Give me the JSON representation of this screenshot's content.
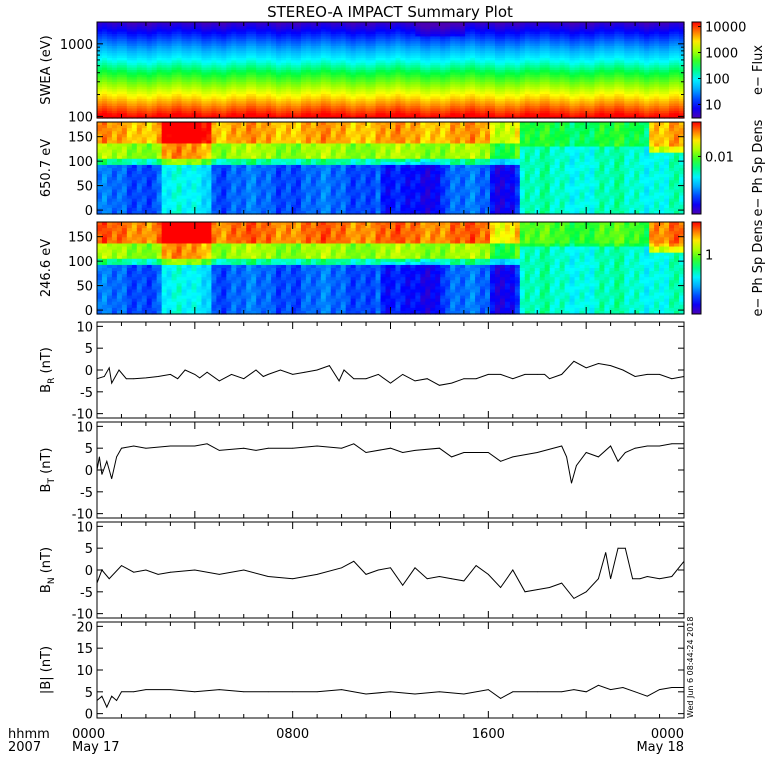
{
  "title": "STEREO-A IMPACT Summary Plot",
  "footer": {
    "hhmm": "hhmm",
    "year": "2007",
    "date_start": "May 17",
    "date_end": "May 18"
  },
  "timestamp": "Wed Jun  6 08:44:24 2018",
  "chart_data": [
    {
      "type": "heatmap",
      "ylabel": "SWEA (eV)",
      "ylim": [
        95,
        2000
      ],
      "yscale": "log",
      "yticks": [
        {
          "v": 1000,
          "label": "1000"
        },
        {
          "v": 100,
          "label": "100"
        }
      ],
      "colorbar": {
        "label": "e− Flux",
        "scale": "log",
        "range": [
          3,
          15000
        ],
        "ticks": [
          {
            "v": 10000,
            "label": "10000"
          },
          {
            "v": 1000,
            "label": "1000"
          },
          {
            "v": 100,
            "label": "100"
          },
          {
            "v": 10,
            "label": "10"
          }
        ]
      }
    },
    {
      "type": "heatmap",
      "ylabel": "650.7 eV",
      "ylim": [
        -8,
        180
      ],
      "yticks": [
        {
          "v": 150,
          "label": "150"
        },
        {
          "v": 100,
          "label": "100"
        },
        {
          "v": 50,
          "label": "50"
        },
        {
          "v": 0,
          "label": "0"
        }
      ],
      "colorbar": {
        "label": "e− Ph Sp Dens",
        "scale": "log",
        "range": [
          0.0005,
          0.06
        ],
        "ticks": [
          {
            "v": 0.01,
            "label": "0.01"
          }
        ]
      }
    },
    {
      "type": "heatmap",
      "ylabel": "246.6 eV",
      "ylim": [
        -8,
        180
      ],
      "yticks": [
        {
          "v": 150,
          "label": "150"
        },
        {
          "v": 100,
          "label": "100"
        },
        {
          "v": 50,
          "label": "50"
        },
        {
          "v": 0,
          "label": "0"
        }
      ],
      "colorbar": {
        "label": "e− Ph Sp Dens",
        "scale": "log",
        "range": [
          0.08,
          4
        ],
        "ticks": [
          {
            "v": 1,
            "label": "1"
          }
        ]
      }
    },
    {
      "type": "line",
      "ylabel": "B",
      "ysub": "R",
      "yunit": " (nT)",
      "ylim": [
        -11,
        11
      ],
      "yticks": [
        10,
        5,
        0,
        -5,
        -10
      ],
      "series": [
        {
          "x": [
            0,
            0.3,
            0.5,
            0.6,
            0.9,
            1.2,
            1.5,
            2,
            2.5,
            3,
            3.3,
            3.6,
            4,
            4.2,
            4.5,
            5,
            5.5,
            6,
            6.5,
            6.8,
            7,
            7.5,
            8,
            8.5,
            9,
            9.5,
            9.9,
            10.1,
            10.5,
            11,
            11.5,
            12,
            12.5,
            13,
            13.5,
            14,
            14.5,
            15,
            15.5,
            16,
            16.5,
            17,
            17.5,
            18,
            18.3,
            18.5,
            19,
            19.5,
            20,
            20.5,
            21,
            21.5,
            22,
            22.5,
            23,
            23.5,
            24
          ],
          "y": [
            -2,
            -1.5,
            0.5,
            -3,
            0,
            -2,
            -2,
            -1.8,
            -1.5,
            -1,
            -2,
            0,
            -1,
            -1.8,
            -0.5,
            -2.5,
            -1,
            -2,
            0,
            -1.5,
            -1,
            0,
            -1,
            -0.5,
            0,
            1,
            -2.5,
            0,
            -2,
            -2,
            -1,
            -3,
            -1,
            -2.5,
            -2,
            -3.5,
            -3,
            -2,
            -2,
            -1,
            -1,
            -2,
            -1,
            -1,
            -1,
            -2,
            -1,
            2,
            0.5,
            1.5,
            1,
            0,
            -1.5,
            -1,
            -1,
            -2,
            -1.5
          ]
        }
      ]
    },
    {
      "type": "line",
      "ylabel": "B",
      "ysub": "T",
      "yunit": " (nT)",
      "ylim": [
        -11,
        11
      ],
      "yticks": [
        10,
        5,
        0,
        -5,
        -10
      ],
      "series": [
        {
          "x": [
            0,
            0.1,
            0.2,
            0.4,
            0.6,
            0.8,
            1,
            1.5,
            2,
            3,
            4,
            4.5,
            5,
            6,
            6.5,
            7,
            8,
            9,
            10,
            10.5,
            11,
            12,
            12.5,
            13,
            14,
            14.5,
            15,
            16,
            16.5,
            17,
            18,
            19,
            19.2,
            19.4,
            19.6,
            20,
            20.5,
            21,
            21.3,
            21.6,
            22,
            22.5,
            23,
            23.5,
            24
          ],
          "y": [
            0,
            3,
            -1,
            2,
            -2,
            3,
            5,
            5.5,
            5,
            5.5,
            5.5,
            6,
            4.5,
            5,
            4.5,
            5,
            5,
            5.5,
            5,
            6,
            4,
            5,
            4,
            4.5,
            5,
            3,
            4,
            4,
            2,
            3,
            4,
            5.5,
            3,
            -3,
            1,
            4,
            3,
            5.5,
            2,
            4,
            5,
            5.5,
            5.5,
            6,
            6
          ]
        }
      ]
    },
    {
      "type": "line",
      "ylabel": "B",
      "ysub": "N",
      "yunit": " (nT)",
      "ylim": [
        -11,
        11
      ],
      "yticks": [
        10,
        5,
        0,
        -5,
        -10
      ],
      "series": [
        {
          "x": [
            0,
            0.2,
            0.5,
            1,
            1.5,
            2,
            2.5,
            3,
            4,
            5,
            6,
            7,
            8,
            9,
            10,
            10.5,
            11,
            11.5,
            12,
            12.5,
            13,
            13.5,
            14,
            14.5,
            15,
            15.5,
            16,
            16.5,
            17,
            17.5,
            18,
            18.5,
            19,
            19.5,
            20,
            20.5,
            20.8,
            21,
            21.3,
            21.6,
            21.9,
            22.2,
            22.5,
            23,
            23.5,
            24
          ],
          "y": [
            -3,
            0,
            -2,
            1,
            -0.5,
            0,
            -1,
            -0.5,
            0,
            -1,
            0,
            -1.5,
            -2,
            -1,
            0.5,
            2,
            -1,
            0,
            0.5,
            -3.5,
            0.5,
            -2,
            -1.5,
            -2,
            -2.5,
            1,
            -1,
            -4,
            0,
            -5,
            -4.5,
            -4,
            -3,
            -6.5,
            -5,
            -2,
            4,
            -2,
            5,
            5,
            -2,
            -2,
            -1.5,
            -2,
            -1.5,
            2
          ]
        }
      ]
    },
    {
      "type": "line",
      "ylabel": "|B| (nT)",
      "ylim": [
        -1,
        21
      ],
      "yticks": [
        20,
        15,
        10,
        5,
        0
      ],
      "series": [
        {
          "x": [
            0,
            0.2,
            0.4,
            0.6,
            0.8,
            1,
            1.5,
            2,
            3,
            4,
            5,
            6,
            7,
            8,
            9,
            10,
            11,
            12,
            13,
            14,
            15,
            16,
            16.5,
            17,
            18,
            19,
            19.5,
            20,
            20.5,
            21,
            21.5,
            22,
            22.5,
            23,
            23.5,
            24
          ],
          "y": [
            3,
            4,
            1.5,
            4,
            3,
            5,
            5,
            5.5,
            5.5,
            5,
            5.5,
            5,
            5,
            5,
            5,
            5.5,
            4.5,
            5,
            4.5,
            5,
            4.5,
            5.5,
            3.5,
            5,
            5,
            5,
            5.5,
            5,
            6.5,
            5.5,
            6,
            5,
            4,
            5.5,
            6,
            6
          ]
        }
      ]
    }
  ],
  "xaxis": {
    "xlim": [
      0,
      24
    ],
    "major_ticks": [
      {
        "v": 0,
        "label": "0000"
      },
      {
        "v": 8,
        "label": "0800"
      },
      {
        "v": 16,
        "label": "1600"
      },
      {
        "v": 24,
        "label": "0000"
      }
    ],
    "minor_step": 1
  }
}
